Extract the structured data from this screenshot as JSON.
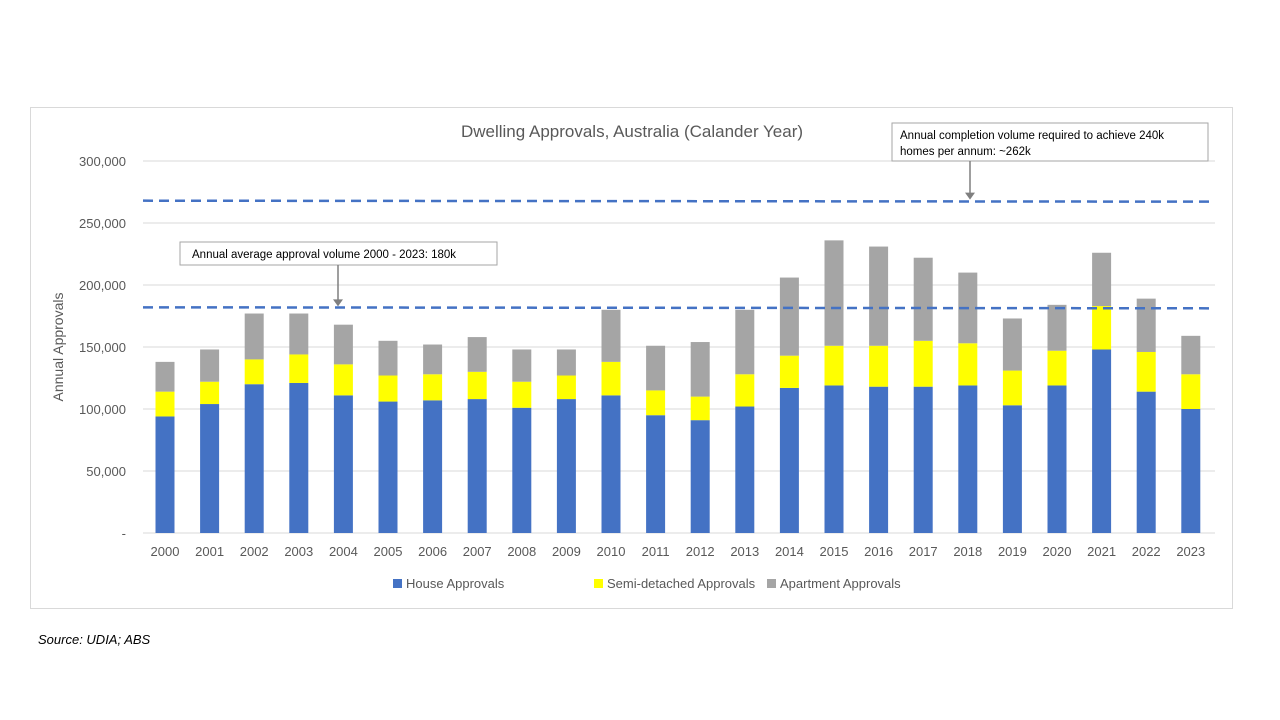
{
  "chart_data": {
    "type": "bar",
    "stacked": true,
    "title": "Dwelling Approvals, Australia (Calander Year)",
    "xlabel": "",
    "ylabel": "Annual Approvals",
    "ylim": [
      0,
      300000
    ],
    "yticks": [
      "-",
      "50,000",
      "100,000",
      "150,000",
      "200,000",
      "250,000",
      "300,000"
    ],
    "grid": true,
    "legend_position": "bottom",
    "categories": [
      "2000",
      "2001",
      "2002",
      "2003",
      "2004",
      "2005",
      "2006",
      "2007",
      "2008",
      "2009",
      "2010",
      "2011",
      "2012",
      "2013",
      "2014",
      "2015",
      "2016",
      "2017",
      "2018",
      "2019",
      "2020",
      "2021",
      "2022",
      "2023"
    ],
    "series": [
      {
        "name": "House Approvals",
        "color": "#4472c4",
        "values": [
          94000,
          104000,
          120000,
          121000,
          111000,
          106000,
          107000,
          108000,
          101000,
          108000,
          111000,
          95000,
          91000,
          102000,
          117000,
          119000,
          118000,
          118000,
          119000,
          103000,
          119000,
          148000,
          114000,
          100000
        ]
      },
      {
        "name": "Semi-detached Approvals",
        "color": "#ffff00",
        "values": [
          20000,
          18000,
          20000,
          23000,
          25000,
          21000,
          21000,
          22000,
          21000,
          19000,
          27000,
          20000,
          19000,
          26000,
          26000,
          32000,
          33000,
          37000,
          34000,
          28000,
          28000,
          35000,
          32000,
          28000
        ]
      },
      {
        "name": "Apartment Approvals",
        "color": "#a5a5a5",
        "values": [
          24000,
          26000,
          37000,
          33000,
          32000,
          28000,
          24000,
          28000,
          26000,
          21000,
          42000,
          36000,
          44000,
          52000,
          63000,
          85000,
          80000,
          67000,
          57000,
          42000,
          37000,
          43000,
          43000,
          31000
        ]
      }
    ],
    "reference_lines": [
      {
        "value": 182000,
        "style": "dashed",
        "color": "#4472c4",
        "annotation": "Annual average approval volume 2000 - 2023: 180k"
      },
      {
        "value": 268000,
        "style": "dashed",
        "color": "#4472c4",
        "annotation": [
          "Annual  completion volume required to achieve 240k",
          "homes per annum: ~262k"
        ]
      }
    ]
  },
  "source": "Source: UDIA; ABS"
}
